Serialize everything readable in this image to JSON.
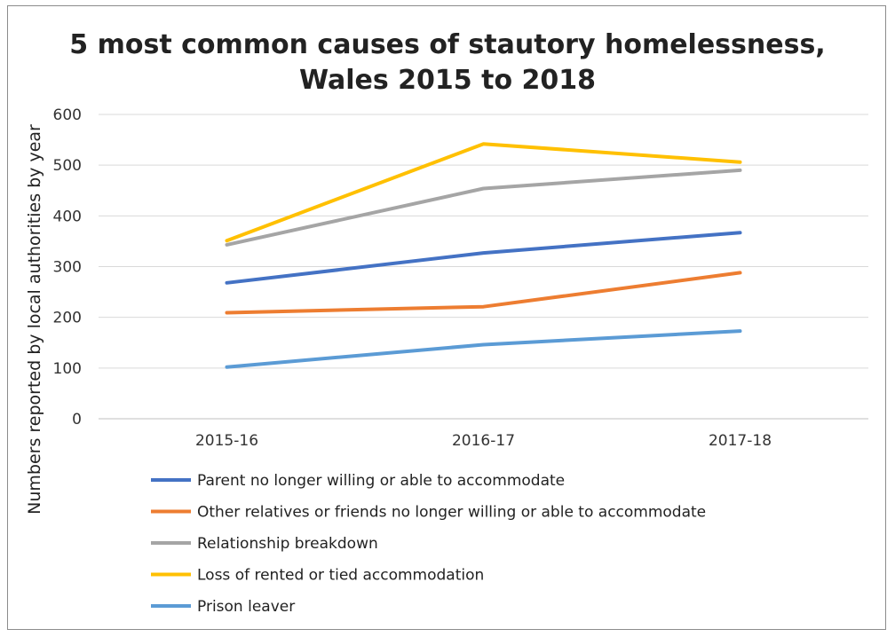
{
  "chart_data": {
    "type": "line",
    "title_line1": "5 most common causes of stautory homelessness,",
    "title_line2": "Wales 2015 to 2018",
    "xlabel": "",
    "ylabel": "Numbers reported by local authorities by year",
    "categories": [
      "2015-16",
      "2016-17",
      "2017-18"
    ],
    "ylim": [
      0,
      600
    ],
    "yticks": [
      "0",
      "100",
      "200",
      "300",
      "400",
      "500",
      "600"
    ],
    "grid": true,
    "legend_position": "bottom",
    "series": [
      {
        "name": "Parent no longer willing or able to accommodate",
        "color": "#4472c4",
        "values": [
          268,
          327,
          367
        ]
      },
      {
        "name": "Other relatives or friends no longer willing or able to accommodate",
        "color": "#ed7d31",
        "values": [
          209,
          221,
          288
        ]
      },
      {
        "name": "Relationship breakdown",
        "color": "#a5a5a5",
        "values": [
          343,
          454,
          490
        ]
      },
      {
        "name": "Loss of rented or tied accommodation",
        "color": "#ffc000",
        "values": [
          351,
          542,
          506
        ]
      },
      {
        "name": "Prison leaver",
        "color": "#5b9bd5",
        "values": [
          102,
          146,
          173
        ]
      }
    ]
  }
}
